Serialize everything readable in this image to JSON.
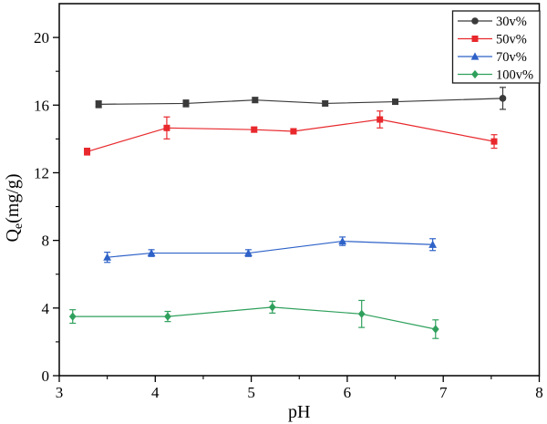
{
  "figure": {
    "background": "#ffffff",
    "axis_color": "#000000"
  },
  "chart_data": {
    "type": "line",
    "title": "",
    "xlabel": "pH",
    "ylabel": "Qe(mg/g)",
    "ylabel_parts": {
      "prefix": "Q",
      "subscript": "e",
      "suffix": "(mg/g)"
    },
    "xlim": [
      3,
      8
    ],
    "ylim": [
      0,
      22
    ],
    "x_major_ticks": [
      3,
      4,
      5,
      6,
      7,
      8
    ],
    "x_tick_labels": [
      "3",
      "4",
      "5",
      "6",
      "7",
      "8"
    ],
    "x_minor_ticks": [
      3.5,
      4.5,
      5.5,
      6.5,
      7.5
    ],
    "y_major_ticks": [
      0,
      4,
      8,
      12,
      16,
      20
    ],
    "y_tick_labels": [
      "0",
      "4",
      "8",
      "12",
      "16",
      "20"
    ],
    "y_minor_ticks": [
      2,
      6,
      10,
      14,
      18
    ],
    "grid": false,
    "legend": {
      "position": "top-right",
      "entries": [
        "30v%",
        "50v%",
        "70v%",
        "100v%"
      ]
    },
    "series": [
      {
        "name": "30v%",
        "color": "#3a3a3a",
        "marker": "square",
        "legend_marker": "circle",
        "point_markers": [
          "square",
          "square",
          "square",
          "square",
          "square",
          "circle"
        ],
        "x": [
          3.41,
          4.32,
          5.04,
          5.77,
          6.5,
          7.62
        ],
        "y": [
          16.05,
          16.1,
          16.3,
          16.1,
          16.2,
          16.4
        ],
        "yerr": [
          0.2,
          0.2,
          0.15,
          0.15,
          0.15,
          0.65
        ]
      },
      {
        "name": "50v%",
        "color": "#e8282c",
        "marker": "square",
        "x": [
          3.29,
          4.12,
          5.03,
          5.44,
          6.34,
          7.53
        ],
        "y": [
          13.25,
          14.65,
          14.55,
          14.45,
          15.15,
          13.85
        ],
        "yerr": [
          0.2,
          0.65,
          0.15,
          0.15,
          0.5,
          0.4
        ]
      },
      {
        "name": "70v%",
        "color": "#2e62c8",
        "marker": "triangle",
        "x": [
          3.5,
          3.96,
          4.97,
          5.95,
          6.89
        ],
        "y": [
          7.0,
          7.25,
          7.25,
          7.95,
          7.75
        ],
        "yerr": [
          0.3,
          0.2,
          0.2,
          0.25,
          0.35
        ]
      },
      {
        "name": "100v%",
        "color": "#2fa05c",
        "marker": "diamond",
        "x": [
          3.14,
          4.13,
          5.22,
          6.15,
          6.92
        ],
        "y": [
          3.5,
          3.5,
          4.05,
          3.65,
          2.75
        ],
        "yerr": [
          0.4,
          0.3,
          0.35,
          0.8,
          0.55
        ]
      }
    ]
  }
}
